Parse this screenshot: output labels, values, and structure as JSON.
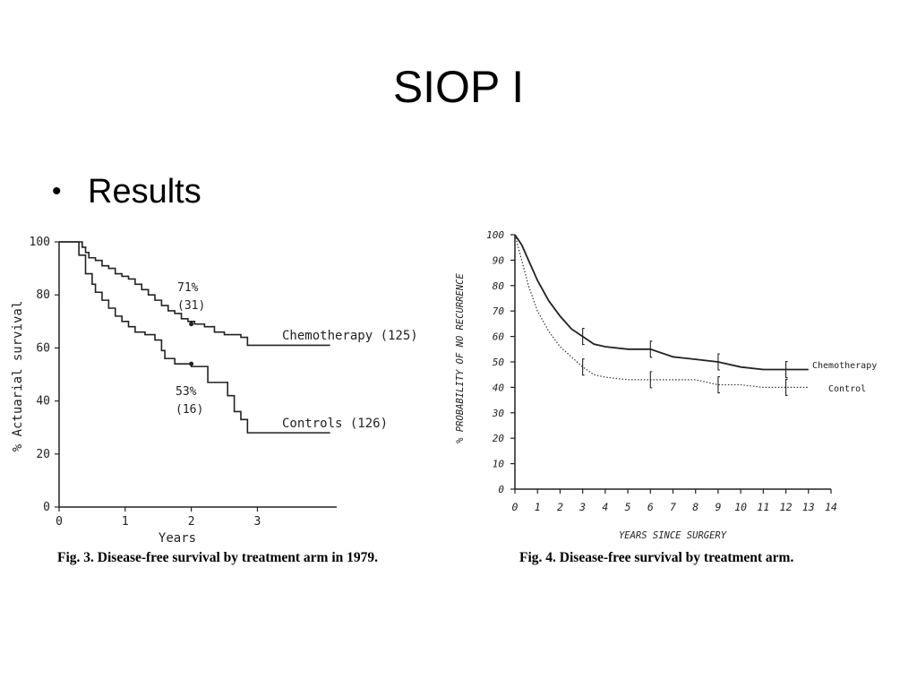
{
  "slide": {
    "title": "SIOP I",
    "bullet_icon": "bullet-dot-icon",
    "bullet": "Results"
  },
  "chart_data": [
    {
      "type": "line",
      "step": true,
      "title": "",
      "xlabel": "Years",
      "ylabel": "% Actuarial survival",
      "xlim": [
        0,
        4.2
      ],
      "ylim": [
        0,
        100
      ],
      "x_ticks": [
        "0",
        "1",
        "2",
        "3"
      ],
      "y_ticks": [
        "0",
        "20",
        "40",
        "60",
        "80",
        "100"
      ],
      "caption": {
        "fig": "Fig. 3.",
        "text": "Disease-free survival by treatment arm in 1979."
      },
      "annotations": [
        {
          "id": "chemo-pct",
          "text": "71%",
          "x": 2.0,
          "y": 69
        },
        {
          "id": "chemo-n",
          "text": "(31)",
          "x": 2.0,
          "y": 69
        },
        {
          "id": "ctrl-pct",
          "text": "53%",
          "x": 2.0,
          "y": 54
        },
        {
          "id": "ctrl-n",
          "text": "(16)",
          "x": 2.0,
          "y": 54
        }
      ],
      "series": [
        {
          "name": "Chemotherapy (125)",
          "color": "#222222",
          "x": [
            0,
            0.2,
            0.35,
            0.4,
            0.45,
            0.55,
            0.65,
            0.75,
            0.85,
            0.95,
            1.05,
            1.15,
            1.25,
            1.35,
            1.45,
            1.55,
            1.65,
            1.75,
            1.85,
            1.95,
            2.05,
            2.2,
            2.35,
            2.5,
            2.75,
            2.85,
            3.0,
            4.1
          ],
          "y": [
            100,
            100,
            98,
            96,
            94,
            93,
            91,
            90,
            88,
            87,
            86,
            84,
            82,
            80,
            78,
            76,
            74,
            73,
            71,
            70,
            69,
            68,
            66,
            65,
            64,
            61,
            61,
            61
          ]
        },
        {
          "name": "Controls (126)",
          "color": "#222222",
          "x": [
            0,
            0.2,
            0.3,
            0.4,
            0.5,
            0.55,
            0.65,
            0.75,
            0.85,
            0.95,
            1.05,
            1.15,
            1.3,
            1.45,
            1.55,
            1.6,
            1.75,
            2.0,
            2.25,
            2.55,
            2.65,
            2.75,
            2.85,
            4.1
          ],
          "y": [
            100,
            100,
            95,
            88,
            84,
            81,
            78,
            75,
            72,
            70,
            68,
            66,
            65,
            63,
            59,
            56,
            54,
            53,
            47,
            42,
            36,
            33,
            28,
            28
          ]
        }
      ]
    },
    {
      "type": "line",
      "title": "",
      "xlabel": "YEARS SINCE SURGERY",
      "ylabel": "% PROBABILITY OF NO RECURRENCE",
      "xlim": [
        0,
        14
      ],
      "ylim": [
        0,
        100
      ],
      "x_ticks": [
        "0",
        "1",
        "2",
        "3",
        "4",
        "5",
        "6",
        "7",
        "8",
        "9",
        "10",
        "11",
        "12",
        "13",
        "14"
      ],
      "y_ticks": [
        "0",
        "10",
        "20",
        "30",
        "40",
        "50",
        "60",
        "70",
        "80",
        "90",
        "100"
      ],
      "caption": {
        "fig": "Fig. 4.",
        "text": "Disease-free survival by treatment arm."
      },
      "series": [
        {
          "name": "Chemotherapy",
          "style": "solid",
          "color": "#222222",
          "x": [
            0,
            0.3,
            0.6,
            1.0,
            1.5,
            2.0,
            2.5,
            3.0,
            3.5,
            4.0,
            5.0,
            6.0,
            7.0,
            8.0,
            9.0,
            10.0,
            11.0,
            12.0,
            13.0
          ],
          "y": [
            100,
            96,
            90,
            82,
            74,
            68,
            63,
            60,
            57,
            56,
            55,
            55,
            52,
            51,
            50,
            48,
            47,
            47,
            47
          ],
          "error_bars_x": [
            3,
            6,
            9,
            12
          ]
        },
        {
          "name": "Control",
          "style": "dotted",
          "color": "#333333",
          "x": [
            0,
            0.3,
            0.6,
            1.0,
            1.5,
            2.0,
            2.5,
            3.0,
            3.5,
            4.0,
            5.0,
            6.0,
            7.0,
            8.0,
            9.0,
            10.0,
            11.0,
            12.0,
            13.0
          ],
          "y": [
            100,
            90,
            80,
            70,
            62,
            56,
            52,
            48,
            45,
            44,
            43,
            43,
            43,
            43,
            41,
            41,
            40,
            40,
            40
          ],
          "error_bars_x": [
            3,
            6,
            9,
            12
          ]
        }
      ]
    }
  ]
}
